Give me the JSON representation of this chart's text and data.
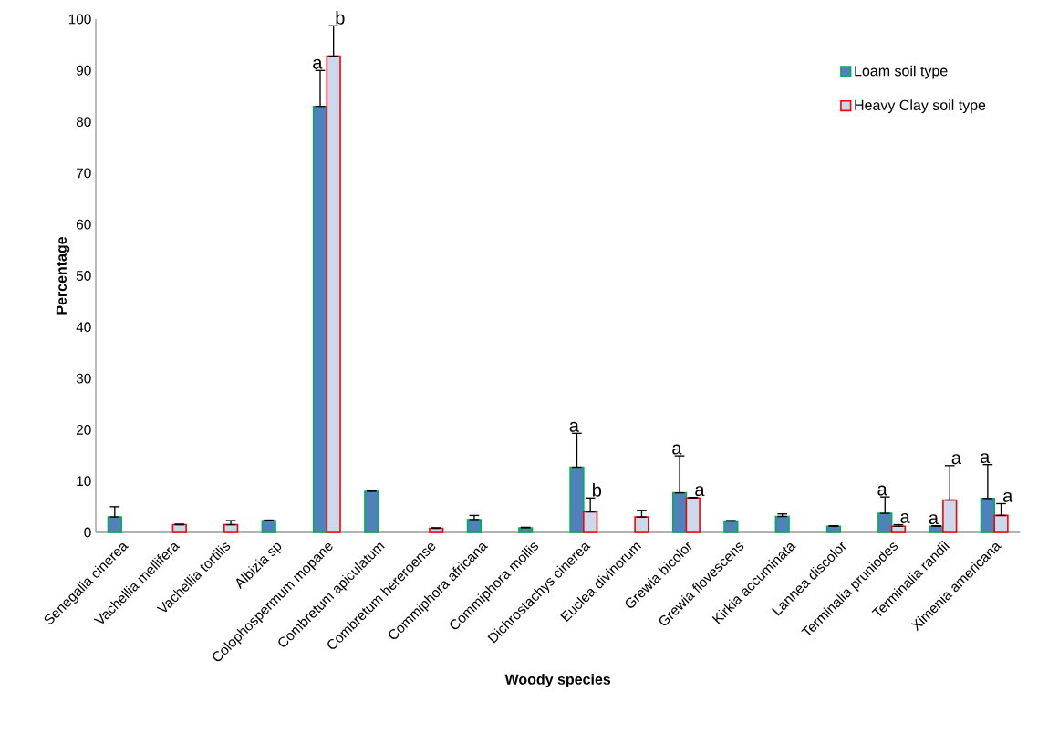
{
  "chart_data": {
    "type": "bar",
    "xlabel": "Woody species",
    "ylabel": "Percentage",
    "categories": [
      "Senegalia cinerea",
      "Vachellia mellifera",
      "Vachellia tortilis",
      "Albizia sp",
      "Colophospermum mopane",
      "Combretum apiculatum",
      "Combretum hereroense",
      "Commiphora africana",
      "Commiphora mollis",
      "Dichrostachys cinerea",
      "Euclea divinorum",
      "Grewia bicolor",
      "Grewia flovescens",
      "Kirkia accuminata",
      "Lannea discolor",
      "Terminalia pruniodes",
      "Terminalia randii",
      "Ximenia americana"
    ],
    "series": [
      {
        "name": "Loam soil type",
        "color": "#4f81bd",
        "values": [
          3.0,
          null,
          null,
          2.3,
          83,
          8.0,
          null,
          2.5,
          0.9,
          12.7,
          null,
          7.7,
          2.2,
          3.1,
          1.2,
          3.7,
          1.2,
          6.6
        ],
        "errors": [
          [
            3.0,
            5.0
          ],
          null,
          null,
          [
            2.3,
            2.4
          ],
          [
            83,
            90
          ],
          [
            8.0,
            8.1
          ],
          null,
          [
            2.5,
            3.3
          ],
          [
            0.9,
            1.0
          ],
          [
            12.7,
            19.3
          ],
          null,
          [
            7.7,
            14.9
          ],
          [
            2.2,
            2.3
          ],
          [
            3.1,
            3.6
          ],
          [
            1.2,
            1.3
          ],
          [
            3.7,
            6.9
          ],
          [
            1.2,
            1.3
          ],
          [
            6.6,
            13.2
          ]
        ]
      },
      {
        "name": "Heavy Clay soil type",
        "color": "#ff0000",
        "values": [
          null,
          1.5,
          1.5,
          null,
          92.8,
          null,
          0.8,
          null,
          null,
          4.0,
          3.0,
          6.7,
          null,
          null,
          null,
          1.2,
          6.3,
          3.3
        ],
        "errors": [
          null,
          [
            1.5,
            1.6
          ],
          [
            1.5,
            2.3
          ],
          null,
          [
            92.8,
            98.7
          ],
          null,
          [
            0.8,
            0.9
          ],
          null,
          null,
          [
            4.0,
            6.7
          ],
          [
            3.0,
            4.3
          ],
          [
            6.7,
            6.8
          ],
          null,
          null,
          null,
          [
            1.2,
            1.5
          ],
          [
            6.3,
            13.0
          ],
          [
            3.3,
            5.6
          ]
        ]
      }
    ],
    "ylim": [
      0,
      100
    ],
    "yticks": [
      0,
      10,
      20,
      30,
      40,
      50,
      60,
      70,
      80,
      90,
      100
    ],
    "legend": "top right",
    "grid": false,
    "annotations": [
      {
        "text": "a",
        "x": "Colophospermum mopane",
        "y": 90
      },
      {
        "text": "b",
        "x": "Colophospermum mopane",
        "y": 98.7
      },
      {
        "text": "a",
        "x": "Dichrostachys cinerea",
        "y": 19.3
      },
      {
        "text": "b",
        "x": "Dichrostachys cinerea",
        "y": 6.7
      },
      {
        "text": "a",
        "x": "Grewia bicolor",
        "y": 14.9
      },
      {
        "text": "a",
        "x": "Grewia bicolor",
        "y": 6.8
      },
      {
        "text": "a",
        "x": "Terminalia pruniodes",
        "y": 6.9
      },
      {
        "text": "a",
        "x": "Terminalia pruniodes",
        "y": 1.5
      },
      {
        "text": "a",
        "x": "Terminalia randii",
        "y": 1.3
      },
      {
        "text": "a",
        "x": "Terminalia randii",
        "y": 13.0
      },
      {
        "text": "a",
        "x": "Ximenia americana",
        "y": 13.2
      },
      {
        "text": "a",
        "x": "Ximenia americana",
        "y": 5.6
      }
    ]
  }
}
